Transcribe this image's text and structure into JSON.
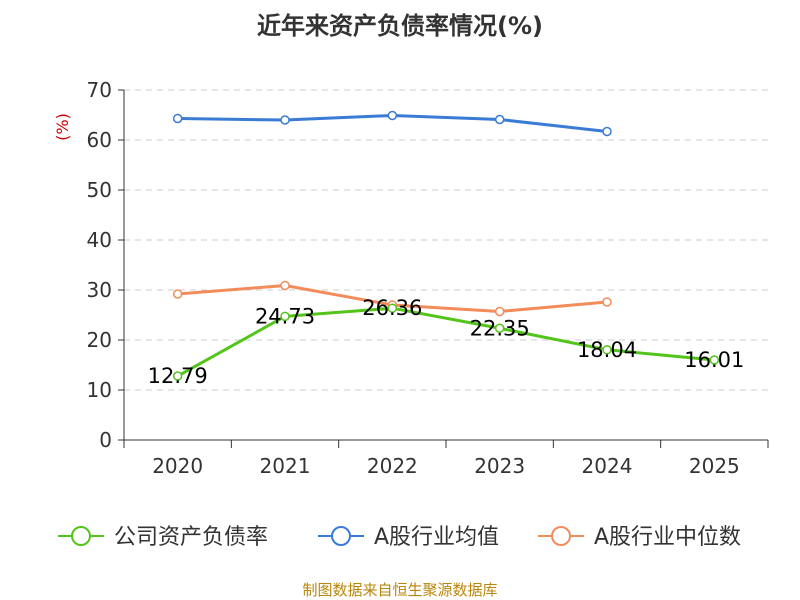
{
  "chart_data": {
    "type": "line",
    "title": "近年来资产负债率情况(%)",
    "ylabel": "(%)",
    "xlabel": "",
    "ylim": [
      0,
      70
    ],
    "yticks": [
      "0",
      "10",
      "20",
      "30",
      "40",
      "50",
      "60",
      "70"
    ],
    "categories": [
      "2020",
      "2021",
      "2022",
      "2023",
      "2024",
      "2025"
    ],
    "grid": true,
    "legend_position": "bottom",
    "series": [
      {
        "name": "公司资产负债率",
        "color": "#52c41a",
        "values": [
          12.79,
          24.73,
          26.36,
          22.35,
          18.04,
          16.01
        ],
        "labels": [
          "12.79",
          "24.73",
          "26.36",
          "22.35",
          "18.04",
          "16.01"
        ]
      },
      {
        "name": "A股行业均值",
        "color": "#3a7bd5",
        "values": [
          64.3,
          64.0,
          64.9,
          64.1,
          61.7,
          null
        ]
      },
      {
        "name": "A股行业中位数",
        "color": "#f28c5a",
        "values": [
          29.2,
          30.9,
          27.0,
          25.7,
          27.6,
          null
        ]
      }
    ]
  },
  "footer": {
    "source": "制图数据来自恒生聚源数据库"
  }
}
